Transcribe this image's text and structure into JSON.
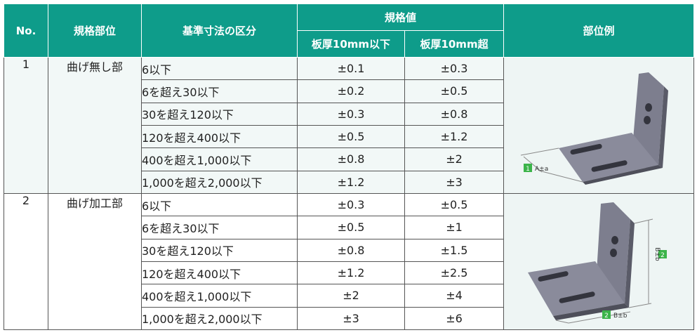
{
  "header": {
    "no": "No.",
    "part": "規格部位",
    "dim_class": "基準寸法の区分",
    "spec_value": "規格値",
    "thin": "板厚10mm以下",
    "thick": "板厚10mm超",
    "example": "部位例"
  },
  "groups": [
    {
      "no": "1",
      "part": "曲げ無し部",
      "rows": [
        {
          "dim": "6以下",
          "thin": "±0.1",
          "thick": "±0.3"
        },
        {
          "dim": "6を超え30以下",
          "thin": "±0.2",
          "thick": "±0.5"
        },
        {
          "dim": "30を超え120以下",
          "thin": "±0.3",
          "thick": "±0.8"
        },
        {
          "dim": "120を超え400以下",
          "thin": "±0.5",
          "thick": "±1.2"
        },
        {
          "dim": "400を超え1,000以下",
          "thin": "±0.8",
          "thick": "±2"
        },
        {
          "dim": "1,000を超え2,000以下",
          "thin": "±1.2",
          "thick": "±3"
        }
      ],
      "figure": {
        "badge": "1",
        "label": "A±a"
      }
    },
    {
      "no": "2",
      "part": "曲げ加工部",
      "rows": [
        {
          "dim": "6以下",
          "thin": "±0.3",
          "thick": "±0.5"
        },
        {
          "dim": "6を超え30以下",
          "thin": "±0.5",
          "thick": "±1"
        },
        {
          "dim": "30を超え120以下",
          "thin": "±0.8",
          "thick": "±1.5"
        },
        {
          "dim": "120を超え400以下",
          "thin": "±1.2",
          "thick": "±2.5"
        },
        {
          "dim": "400を超え1,000以下",
          "thin": "±2",
          "thick": "±4"
        },
        {
          "dim": "1,000を超え2,000以下",
          "thin": "±3",
          "thick": "±6"
        }
      ],
      "figure": {
        "badge": "2",
        "label": "B±b",
        "badge_v": "2",
        "label_v": "B±b"
      }
    }
  ],
  "colors": {
    "header_bg": "#0e9c8a",
    "badge": "#3cb44a",
    "bracket": "#6f7080"
  }
}
